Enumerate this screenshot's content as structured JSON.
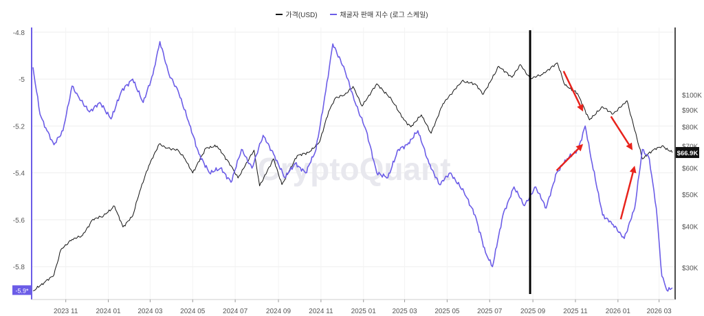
{
  "chart_data": {
    "type": "line",
    "watermark": "CryptoQuant",
    "legend": {
      "position": "top-center",
      "items": [
        {
          "name": "가격(USD)",
          "color": "#111111"
        },
        {
          "name": "채굴자 판매 지수 (로그 스케일)",
          "color": "#6b5ce7"
        }
      ]
    },
    "x_ticks": [
      "2023 11",
      "2024 01",
      "2024 03",
      "2024 05",
      "2024 07",
      "2024 09",
      "2024 11",
      "2025 01",
      "2025 03",
      "2025 05",
      "2025 07",
      "2025 09",
      "2025 11",
      "2026 01",
      "2026 03"
    ],
    "x_tick_dates": [
      "2023-11-01",
      "2024-01-01",
      "2024-03-01",
      "2024-05-01",
      "2024-07-01",
      "2024-09-01",
      "2024-11-01",
      "2025-01-01",
      "2025-03-01",
      "2025-05-01",
      "2025-07-01",
      "2025-09-01",
      "2025-11-01",
      "2026-01-01",
      "2026-03-01"
    ],
    "x_range": [
      "2023-09-13",
      "2026-03-24"
    ],
    "left_axis": {
      "label": "",
      "ticks": [
        "-4.8",
        "-5",
        "-5.2",
        "-5.4",
        "-5.6",
        "-5.8"
      ],
      "tick_values": [
        -4.8,
        -5.0,
        -5.2,
        -5.4,
        -5.6,
        -5.8
      ],
      "range": [
        -5.94,
        -4.78
      ],
      "current_value_label": "-5.9*",
      "current_value": -5.9
    },
    "right_axis": {
      "label": "",
      "scale": "log",
      "ticks": [
        "$100K",
        "$90K",
        "$80K",
        "$70K",
        "$60K",
        "$50K",
        "$40K",
        "$30K"
      ],
      "tick_values": [
        100000,
        90000,
        80000,
        70000,
        60000,
        50000,
        40000,
        30000
      ],
      "range": [
        24000,
        160000
      ],
      "current_value_label": "$66.9K",
      "current_value": 66900
    },
    "grid": true,
    "vertical_marker_date": "2025-08-28",
    "series": [
      {
        "name": "가격(USD)",
        "axis": "right",
        "color": "#111111",
        "points": [
          [
            "2023-09-15",
            25500
          ],
          [
            "2023-10-01",
            27000
          ],
          [
            "2023-10-15",
            28500
          ],
          [
            "2023-10-25",
            34000
          ],
          [
            "2023-11-10",
            36500
          ],
          [
            "2023-11-25",
            37500
          ],
          [
            "2023-12-10",
            42000
          ],
          [
            "2023-12-25",
            43000
          ],
          [
            "2024-01-10",
            46000
          ],
          [
            "2024-01-22",
            39800
          ],
          [
            "2024-02-05",
            43000
          ],
          [
            "2024-02-15",
            51000
          ],
          [
            "2024-02-28",
            61000
          ],
          [
            "2024-03-14",
            71000
          ],
          [
            "2024-03-25",
            69000
          ],
          [
            "2024-04-10",
            68000
          ],
          [
            "2024-04-20",
            64000
          ],
          [
            "2024-05-01",
            58000
          ],
          [
            "2024-05-20",
            69000
          ],
          [
            "2024-06-05",
            70000
          ],
          [
            "2024-06-25",
            61000
          ],
          [
            "2024-07-05",
            56000
          ],
          [
            "2024-07-28",
            68000
          ],
          [
            "2024-08-05",
            53000
          ],
          [
            "2024-08-25",
            64000
          ],
          [
            "2024-09-06",
            53500
          ],
          [
            "2024-09-28",
            65500
          ],
          [
            "2024-10-15",
            67000
          ],
          [
            "2024-10-30",
            72000
          ],
          [
            "2024-11-12",
            89000
          ],
          [
            "2024-11-22",
            98000
          ],
          [
            "2024-12-05",
            100000
          ],
          [
            "2024-12-17",
            106000
          ],
          [
            "2024-12-30",
            92500
          ],
          [
            "2025-01-20",
            108000
          ],
          [
            "2025-02-10",
            97000
          ],
          [
            "2025-02-28",
            84000
          ],
          [
            "2025-03-10",
            80000
          ],
          [
            "2025-03-25",
            87000
          ],
          [
            "2025-04-08",
            76500
          ],
          [
            "2025-04-25",
            94000
          ],
          [
            "2025-05-22",
            110000
          ],
          [
            "2025-06-10",
            108000
          ],
          [
            "2025-06-22",
            100500
          ],
          [
            "2025-07-14",
            122000
          ],
          [
            "2025-08-02",
            113000
          ],
          [
            "2025-08-14",
            123500
          ],
          [
            "2025-08-28",
            112000
          ],
          [
            "2025-09-15",
            115500
          ],
          [
            "2025-10-06",
            125000
          ],
          [
            "2025-10-17",
            107000
          ],
          [
            "2025-11-04",
            101000
          ],
          [
            "2025-11-21",
            84000
          ],
          [
            "2025-12-10",
            92000
          ],
          [
            "2025-12-25",
            87500
          ],
          [
            "2026-01-14",
            96000
          ],
          [
            "2026-02-05",
            64000
          ],
          [
            "2026-02-20",
            68000
          ],
          [
            "2026-03-05",
            70000
          ],
          [
            "2026-03-20",
            66900
          ]
        ]
      },
      {
        "name": "채굴자 판매 지수 (로그 스케일)",
        "axis": "left",
        "color": "#6b5ce7",
        "points": [
          [
            "2023-09-15",
            -4.95
          ],
          [
            "2023-09-25",
            -5.15
          ],
          [
            "2023-10-05",
            -5.22
          ],
          [
            "2023-10-15",
            -5.28
          ],
          [
            "2023-10-28",
            -5.22
          ],
          [
            "2023-11-10",
            -5.03
          ],
          [
            "2023-11-20",
            -5.08
          ],
          [
            "2023-12-05",
            -5.14
          ],
          [
            "2023-12-20",
            -5.1
          ],
          [
            "2024-01-05",
            -5.17
          ],
          [
            "2024-01-20",
            -5.05
          ],
          [
            "2024-02-05",
            -5.0
          ],
          [
            "2024-02-20",
            -5.1
          ],
          [
            "2024-03-05",
            -4.98
          ],
          [
            "2024-03-15",
            -4.84
          ],
          [
            "2024-03-28",
            -4.98
          ],
          [
            "2024-04-10",
            -5.05
          ],
          [
            "2024-04-25",
            -5.18
          ],
          [
            "2024-05-10",
            -5.32
          ],
          [
            "2024-05-25",
            -5.4
          ],
          [
            "2024-06-10",
            -5.38
          ],
          [
            "2024-06-25",
            -5.44
          ],
          [
            "2024-07-10",
            -5.3
          ],
          [
            "2024-07-25",
            -5.38
          ],
          [
            "2024-08-10",
            -5.24
          ],
          [
            "2024-08-25",
            -5.32
          ],
          [
            "2024-09-10",
            -5.42
          ],
          [
            "2024-09-25",
            -5.36
          ],
          [
            "2024-10-10",
            -5.4
          ],
          [
            "2024-10-25",
            -5.3
          ],
          [
            "2024-11-08",
            -5.05
          ],
          [
            "2024-11-18",
            -4.85
          ],
          [
            "2024-12-05",
            -4.96
          ],
          [
            "2024-12-20",
            -5.1
          ],
          [
            "2025-01-05",
            -5.22
          ],
          [
            "2025-01-20",
            -5.4
          ],
          [
            "2025-02-05",
            -5.42
          ],
          [
            "2025-02-20",
            -5.3
          ],
          [
            "2025-03-05",
            -5.28
          ],
          [
            "2025-03-20",
            -5.22
          ],
          [
            "2025-04-05",
            -5.36
          ],
          [
            "2025-04-20",
            -5.45
          ],
          [
            "2025-05-05",
            -5.4
          ],
          [
            "2025-05-25",
            -5.48
          ],
          [
            "2025-06-10",
            -5.58
          ],
          [
            "2025-06-25",
            -5.74
          ],
          [
            "2025-07-05",
            -5.8
          ],
          [
            "2025-07-20",
            -5.58
          ],
          [
            "2025-08-05",
            -5.46
          ],
          [
            "2025-08-20",
            -5.54
          ],
          [
            "2025-09-05",
            -5.46
          ],
          [
            "2025-09-20",
            -5.55
          ],
          [
            "2025-10-05",
            -5.4
          ],
          [
            "2025-10-20",
            -5.34
          ],
          [
            "2025-11-05",
            -5.3
          ],
          [
            "2025-11-15",
            -5.2
          ],
          [
            "2025-11-25",
            -5.36
          ],
          [
            "2025-12-10",
            -5.58
          ],
          [
            "2025-12-25",
            -5.62
          ],
          [
            "2026-01-10",
            -5.68
          ],
          [
            "2026-01-25",
            -5.55
          ],
          [
            "2026-02-05",
            -5.3
          ],
          [
            "2026-02-15",
            -5.34
          ],
          [
            "2026-02-25",
            -5.55
          ],
          [
            "2026-03-05",
            -5.84
          ],
          [
            "2026-03-12",
            -5.9
          ],
          [
            "2026-03-20",
            -5.89
          ]
        ]
      }
    ],
    "annotations": {
      "red_arrows": [
        {
          "from": [
            "2025-10-15",
            118000
          ],
          "to": [
            "2025-11-12",
            89000
          ]
        },
        {
          "from": [
            "2025-12-22",
            86000
          ],
          "to": [
            "2026-01-22",
            68000
          ]
        },
        {
          "from": [
            "2025-10-05",
            59000
          ],
          "to": [
            "2025-11-12",
            71000
          ]
        },
        {
          "from": [
            "2026-01-05",
            42000
          ],
          "to": [
            "2026-01-25",
            61000
          ]
        }
      ]
    }
  }
}
